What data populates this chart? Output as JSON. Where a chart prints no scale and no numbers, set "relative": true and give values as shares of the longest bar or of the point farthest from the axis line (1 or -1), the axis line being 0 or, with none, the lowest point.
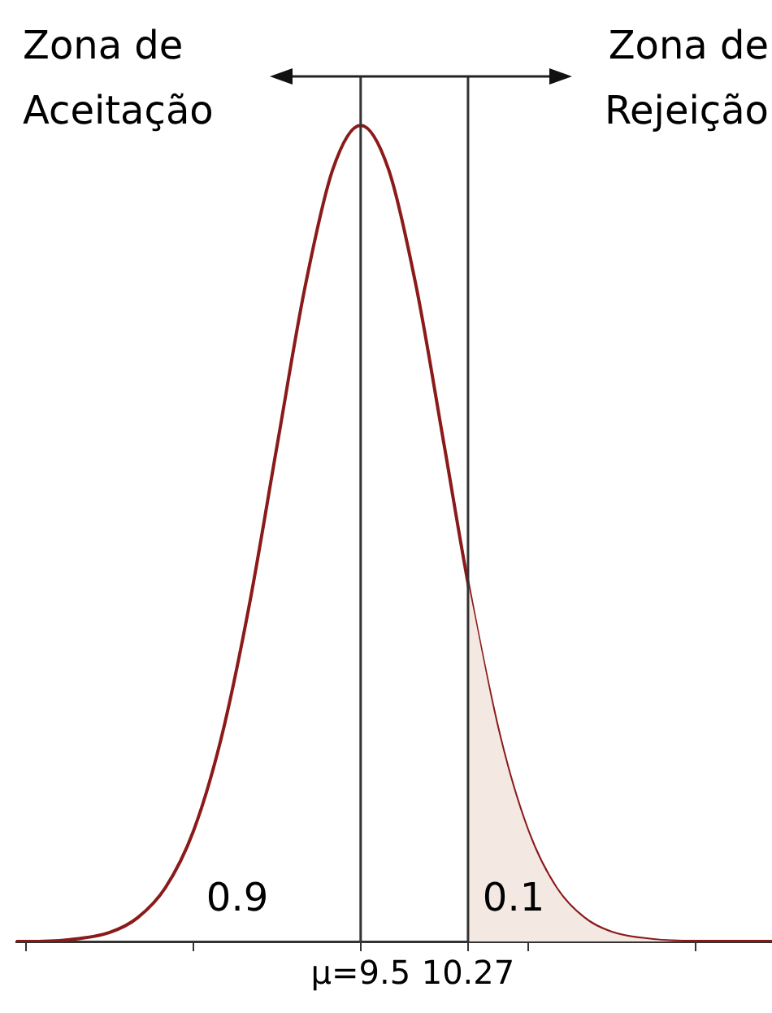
{
  "chart_data": {
    "type": "line",
    "relative": true,
    "annotations": [
      "Zona de Aceitação",
      "Zona de Rejeição",
      "0.9",
      "0.1"
    ],
    "xlim": [
      7.03,
      12.45
    ],
    "xticks": [
      {
        "value": 7.1,
        "label": null
      },
      {
        "value": 8.3,
        "label": null
      },
      {
        "value": 9.5,
        "label": "μ=9.5"
      },
      {
        "value": 10.27,
        "label": "10.27"
      },
      {
        "value": 10.7,
        "label": null
      },
      {
        "value": 11.9,
        "label": null
      }
    ],
    "series": [
      {
        "type": "area",
        "color": "#f3e8e2",
        "x": [
          10.27,
          10.5,
          10.7,
          10.9,
          11.1,
          11.3,
          11.6,
          11.9,
          12.45
        ],
        "values": [
          0.439,
          0.249,
          0.135,
          0.066,
          0.029,
          0.011,
          0.002,
          0,
          0
        ]
      },
      {
        "color": "#8b1a1a",
        "x": [
          7.03,
          7.1,
          7.4,
          7.7,
          7.9,
          8.1,
          8.3,
          8.5,
          8.7,
          8.9,
          9.1,
          9.3,
          9.5,
          9.7,
          9.9,
          10.1,
          10.27,
          10.5,
          10.7,
          10.9,
          11.1,
          11.3,
          11.6,
          11.9,
          12.45
        ],
        "values": [
          0,
          0,
          0.002,
          0.011,
          0.029,
          0.066,
          0.135,
          0.249,
          0.411,
          0.607,
          0.801,
          0.946,
          1,
          0.946,
          0.801,
          0.607,
          0.439,
          0.249,
          0.135,
          0.066,
          0.029,
          0.011,
          0.002,
          0,
          0
        ]
      }
    ],
    "ref_lines": [
      {
        "axis": "x",
        "value": 9.5,
        "color": "#333333"
      },
      {
        "axis": "x",
        "value": 10.27,
        "color": "#333333"
      }
    ],
    "grid": false,
    "legend": false,
    "marker": "none",
    "line_style": "solid"
  }
}
